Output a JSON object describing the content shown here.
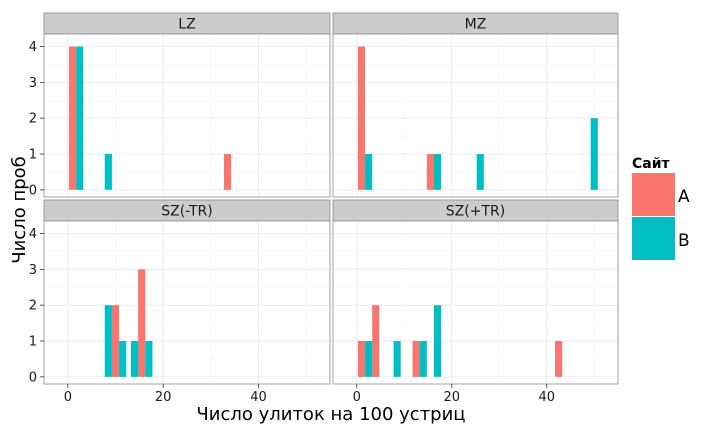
{
  "chart_data": {
    "type": "bar",
    "xlabel": "Число улиток на 100 устриц",
    "ylabel": "Число проб",
    "xlim": [
      -5,
      55
    ],
    "ylim": [
      -0.2,
      4.35
    ],
    "x_ticks": [
      0,
      20,
      40
    ],
    "y_ticks": [
      0,
      1,
      2,
      3,
      4
    ],
    "bar_width": 1.5,
    "grid": true,
    "legend": {
      "title": "Сайт",
      "position": "right",
      "items": [
        {
          "label": "A",
          "color": "#F8766D"
        },
        {
          "label": "B",
          "color": "#00BFC4"
        }
      ]
    },
    "panels": [
      {
        "label": "LZ",
        "series": [
          {
            "name": "A",
            "points": [
              {
                "x": 1,
                "y": 4
              },
              {
                "x": 33.5,
                "y": 1
              }
            ]
          },
          {
            "name": "B",
            "points": [
              {
                "x": 2.5,
                "y": 4
              },
              {
                "x": 8.5,
                "y": 1
              }
            ]
          }
        ]
      },
      {
        "label": "MZ",
        "series": [
          {
            "name": "A",
            "points": [
              {
                "x": 1,
                "y": 4
              },
              {
                "x": 15.5,
                "y": 1
              }
            ]
          },
          {
            "name": "B",
            "points": [
              {
                "x": 2.5,
                "y": 1
              },
              {
                "x": 17,
                "y": 1
              },
              {
                "x": 26,
                "y": 1
              },
              {
                "x": 50,
                "y": 2
              }
            ]
          }
        ]
      },
      {
        "label": "SZ(-TR)",
        "series": [
          {
            "name": "A",
            "points": [
              {
                "x": 10,
                "y": 2
              },
              {
                "x": 15.5,
                "y": 3
              }
            ]
          },
          {
            "name": "B",
            "points": [
              {
                "x": 8.5,
                "y": 2
              },
              {
                "x": 11.5,
                "y": 1
              },
              {
                "x": 14,
                "y": 1
              },
              {
                "x": 17,
                "y": 1
              }
            ]
          }
        ]
      },
      {
        "label": "SZ(+TR)",
        "series": [
          {
            "name": "A",
            "points": [
              {
                "x": 1,
                "y": 1
              },
              {
                "x": 4,
                "y": 2
              },
              {
                "x": 12.5,
                "y": 1
              },
              {
                "x": 42.5,
                "y": 1
              }
            ]
          },
          {
            "name": "B",
            "points": [
              {
                "x": 2.5,
                "y": 1
              },
              {
                "x": 8.5,
                "y": 1
              },
              {
                "x": 14,
                "y": 1
              },
              {
                "x": 17,
                "y": 2
              }
            ]
          }
        ]
      }
    ]
  }
}
